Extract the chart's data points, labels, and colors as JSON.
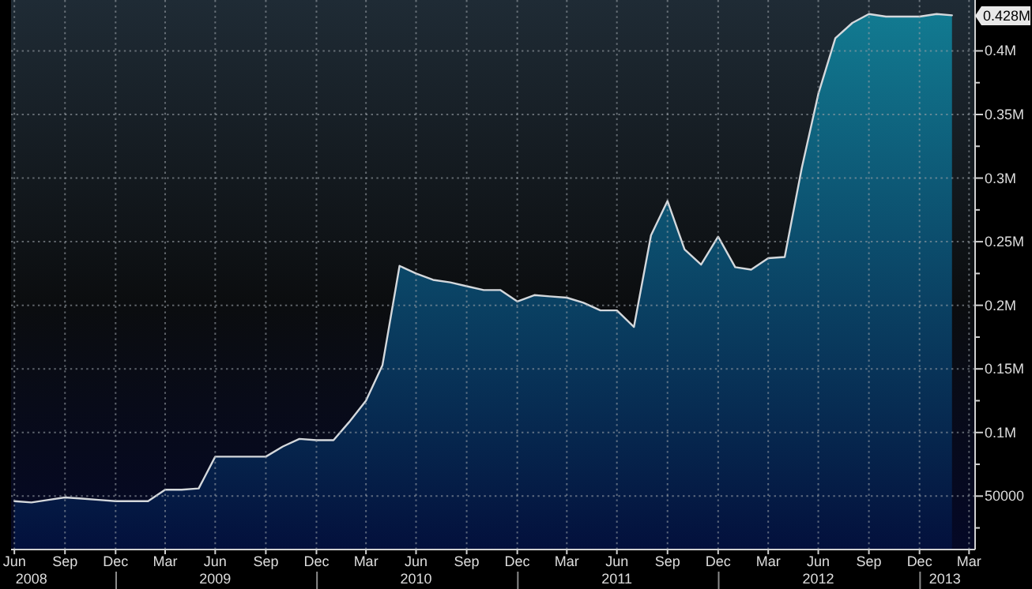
{
  "chart_data": {
    "type": "area",
    "color": "#127d93",
    "x": [
      "2008-06-30",
      "2008-07-31",
      "2008-08-31",
      "2008-09-30",
      "2008-10-31",
      "2008-11-30",
      "2008-12-31",
      "2009-01-31",
      "2009-02-28",
      "2009-03-31",
      "2009-04-30",
      "2009-05-31",
      "2009-06-30",
      "2009-07-31",
      "2009-08-31",
      "2009-09-30",
      "2009-10-31",
      "2009-11-30",
      "2009-12-31",
      "2010-01-31",
      "2010-02-28",
      "2010-03-31",
      "2010-04-30",
      "2010-05-31",
      "2010-06-30",
      "2010-07-31",
      "2010-08-31",
      "2010-09-30",
      "2010-10-31",
      "2010-11-30",
      "2010-12-31",
      "2011-01-31",
      "2011-02-28",
      "2011-03-31",
      "2011-04-30",
      "2011-05-31",
      "2011-06-30",
      "2011-07-31",
      "2011-08-31",
      "2011-09-30",
      "2011-10-31",
      "2011-11-30",
      "2011-12-31",
      "2012-01-31",
      "2012-02-29",
      "2012-03-31",
      "2012-04-30",
      "2012-05-31",
      "2012-06-30",
      "2012-07-31",
      "2012-08-31",
      "2012-09-30",
      "2012-10-31",
      "2012-11-30",
      "2012-12-31",
      "2013-01-31",
      "2013-02-28"
    ],
    "values": [
      46000,
      45000,
      47000,
      49000,
      48000,
      47000,
      46000,
      46000,
      46000,
      55000,
      55000,
      56000,
      81000,
      81000,
      81000,
      81000,
      89000,
      95000,
      94000,
      94000,
      108000,
      125000,
      153000,
      231000,
      225000,
      220000,
      218000,
      215000,
      212000,
      212000,
      203000,
      208000,
      207000,
      206000,
      202000,
      196000,
      196000,
      183000,
      255000,
      282000,
      244000,
      232000,
      254000,
      230000,
      228000,
      237000,
      238000,
      308000,
      366000,
      410000,
      422000,
      429000,
      427000,
      427000,
      427000,
      429000,
      428000
    ],
    "xlim": [
      "2008-06-24",
      "2013-04-11"
    ],
    "xticks": [
      {
        "value": "2008-06-30",
        "label": "Jun"
      },
      {
        "value": "2008-09-30",
        "label": "Sep"
      },
      {
        "value": "2008-12-31",
        "label": "Dec"
      },
      {
        "value": "2009-03-31",
        "label": "Mar"
      },
      {
        "value": "2009-06-30",
        "label": "Jun"
      },
      {
        "value": "2009-09-30",
        "label": "Sep"
      },
      {
        "value": "2009-12-31",
        "label": "Dec"
      },
      {
        "value": "2010-03-31",
        "label": "Mar"
      },
      {
        "value": "2010-06-30",
        "label": "Jun"
      },
      {
        "value": "2010-09-30",
        "label": "Sep"
      },
      {
        "value": "2010-12-31",
        "label": "Dec"
      },
      {
        "value": "2011-03-31",
        "label": "Mar"
      },
      {
        "value": "2011-06-30",
        "label": "Jun"
      },
      {
        "value": "2011-09-30",
        "label": "Sep"
      },
      {
        "value": "2011-12-31",
        "label": "Dec"
      },
      {
        "value": "2012-03-31",
        "label": "Mar"
      },
      {
        "value": "2012-06-30",
        "label": "Jun"
      },
      {
        "value": "2012-09-30",
        "label": "Sep"
      },
      {
        "value": "2012-12-31",
        "label": "Dec"
      },
      {
        "value": "2013-03-31",
        "label": "Mar"
      }
    ],
    "x2lim": [
      "2008-06-24",
      "2013-04-11"
    ],
    "x2ticks": [
      {
        "value": "2008-07-31",
        "label": "2008"
      },
      {
        "value": "2009-06-30",
        "label": "2009"
      },
      {
        "value": "2010-06-30",
        "label": "2010"
      },
      {
        "value": "2011-06-30",
        "label": "2011"
      },
      {
        "value": "2012-06-30",
        "label": "2012"
      },
      {
        "value": "2013-02-15",
        "label": "2013"
      }
    ],
    "ylim": [
      8000,
      440000
    ],
    "yticks": [
      {
        "value": 25000,
        "label": null
      },
      50000,
      {
        "value": 75000,
        "label": null
      },
      {
        "value": 100000,
        "label": "0.1M"
      },
      {
        "value": 125000,
        "label": null
      },
      {
        "value": 150000,
        "label": "0.15M"
      },
      {
        "value": 175000,
        "label": null
      },
      {
        "value": 200000,
        "label": "0.2M"
      },
      {
        "value": 225000,
        "label": null
      },
      {
        "value": 250000,
        "label": "0.25M"
      },
      {
        "value": 275000,
        "label": null
      },
      {
        "value": 300000,
        "label": "0.3M"
      },
      {
        "value": 325000,
        "label": null
      },
      {
        "value": 350000,
        "label": "0.35M"
      },
      {
        "value": 375000,
        "label": null
      },
      {
        "value": 400000,
        "label": "0.4M"
      }
    ],
    "grid": true,
    "annotations": [
      "0.428M"
    ]
  }
}
